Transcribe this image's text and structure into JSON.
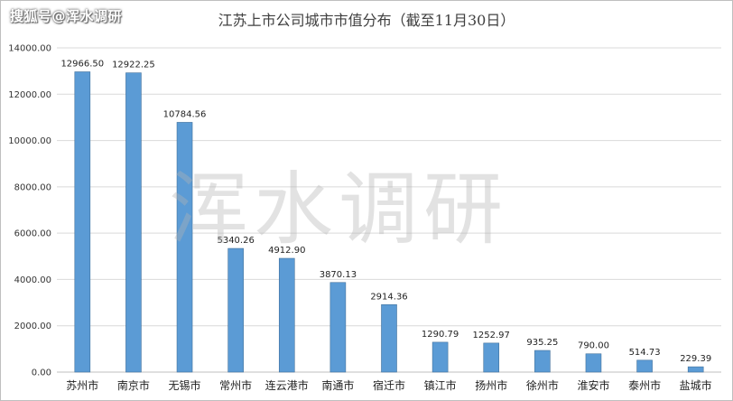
{
  "watermark_top": "搜狐号@浑水调研",
  "watermark_center": "浑水调研",
  "chart_data": {
    "type": "bar",
    "title": "江苏上市公司城市市值分布（截至11月30日）",
    "xlabel": "",
    "ylabel": "",
    "ylim": [
      0,
      14000
    ],
    "yticks": [
      "0.00",
      "2000.00",
      "4000.00",
      "6000.00",
      "8000.00",
      "10000.00",
      "12000.00",
      "14000.00"
    ],
    "grid": true,
    "legend": "none",
    "bar_color": "#5b9bd5",
    "categories": [
      "苏州市",
      "南京市",
      "无锡市",
      "常州市",
      "连云港市",
      "南通市",
      "宿迁市",
      "镇江市",
      "扬州市",
      "徐州市",
      "淮安市",
      "泰州市",
      "盐城市"
    ],
    "values": [
      12966.5,
      12922.25,
      10784.56,
      5340.26,
      4912.9,
      3870.13,
      2914.36,
      1290.79,
      1252.97,
      935.25,
      790.0,
      514.73,
      229.39
    ],
    "data_labels": [
      "12966.50",
      "12922.25",
      "10784.56",
      "5340.26",
      "4912.90",
      "3870.13",
      "2914.36",
      "1290.79",
      "1252.97",
      "935.25",
      "790.00",
      "514.73",
      "229.39"
    ]
  }
}
